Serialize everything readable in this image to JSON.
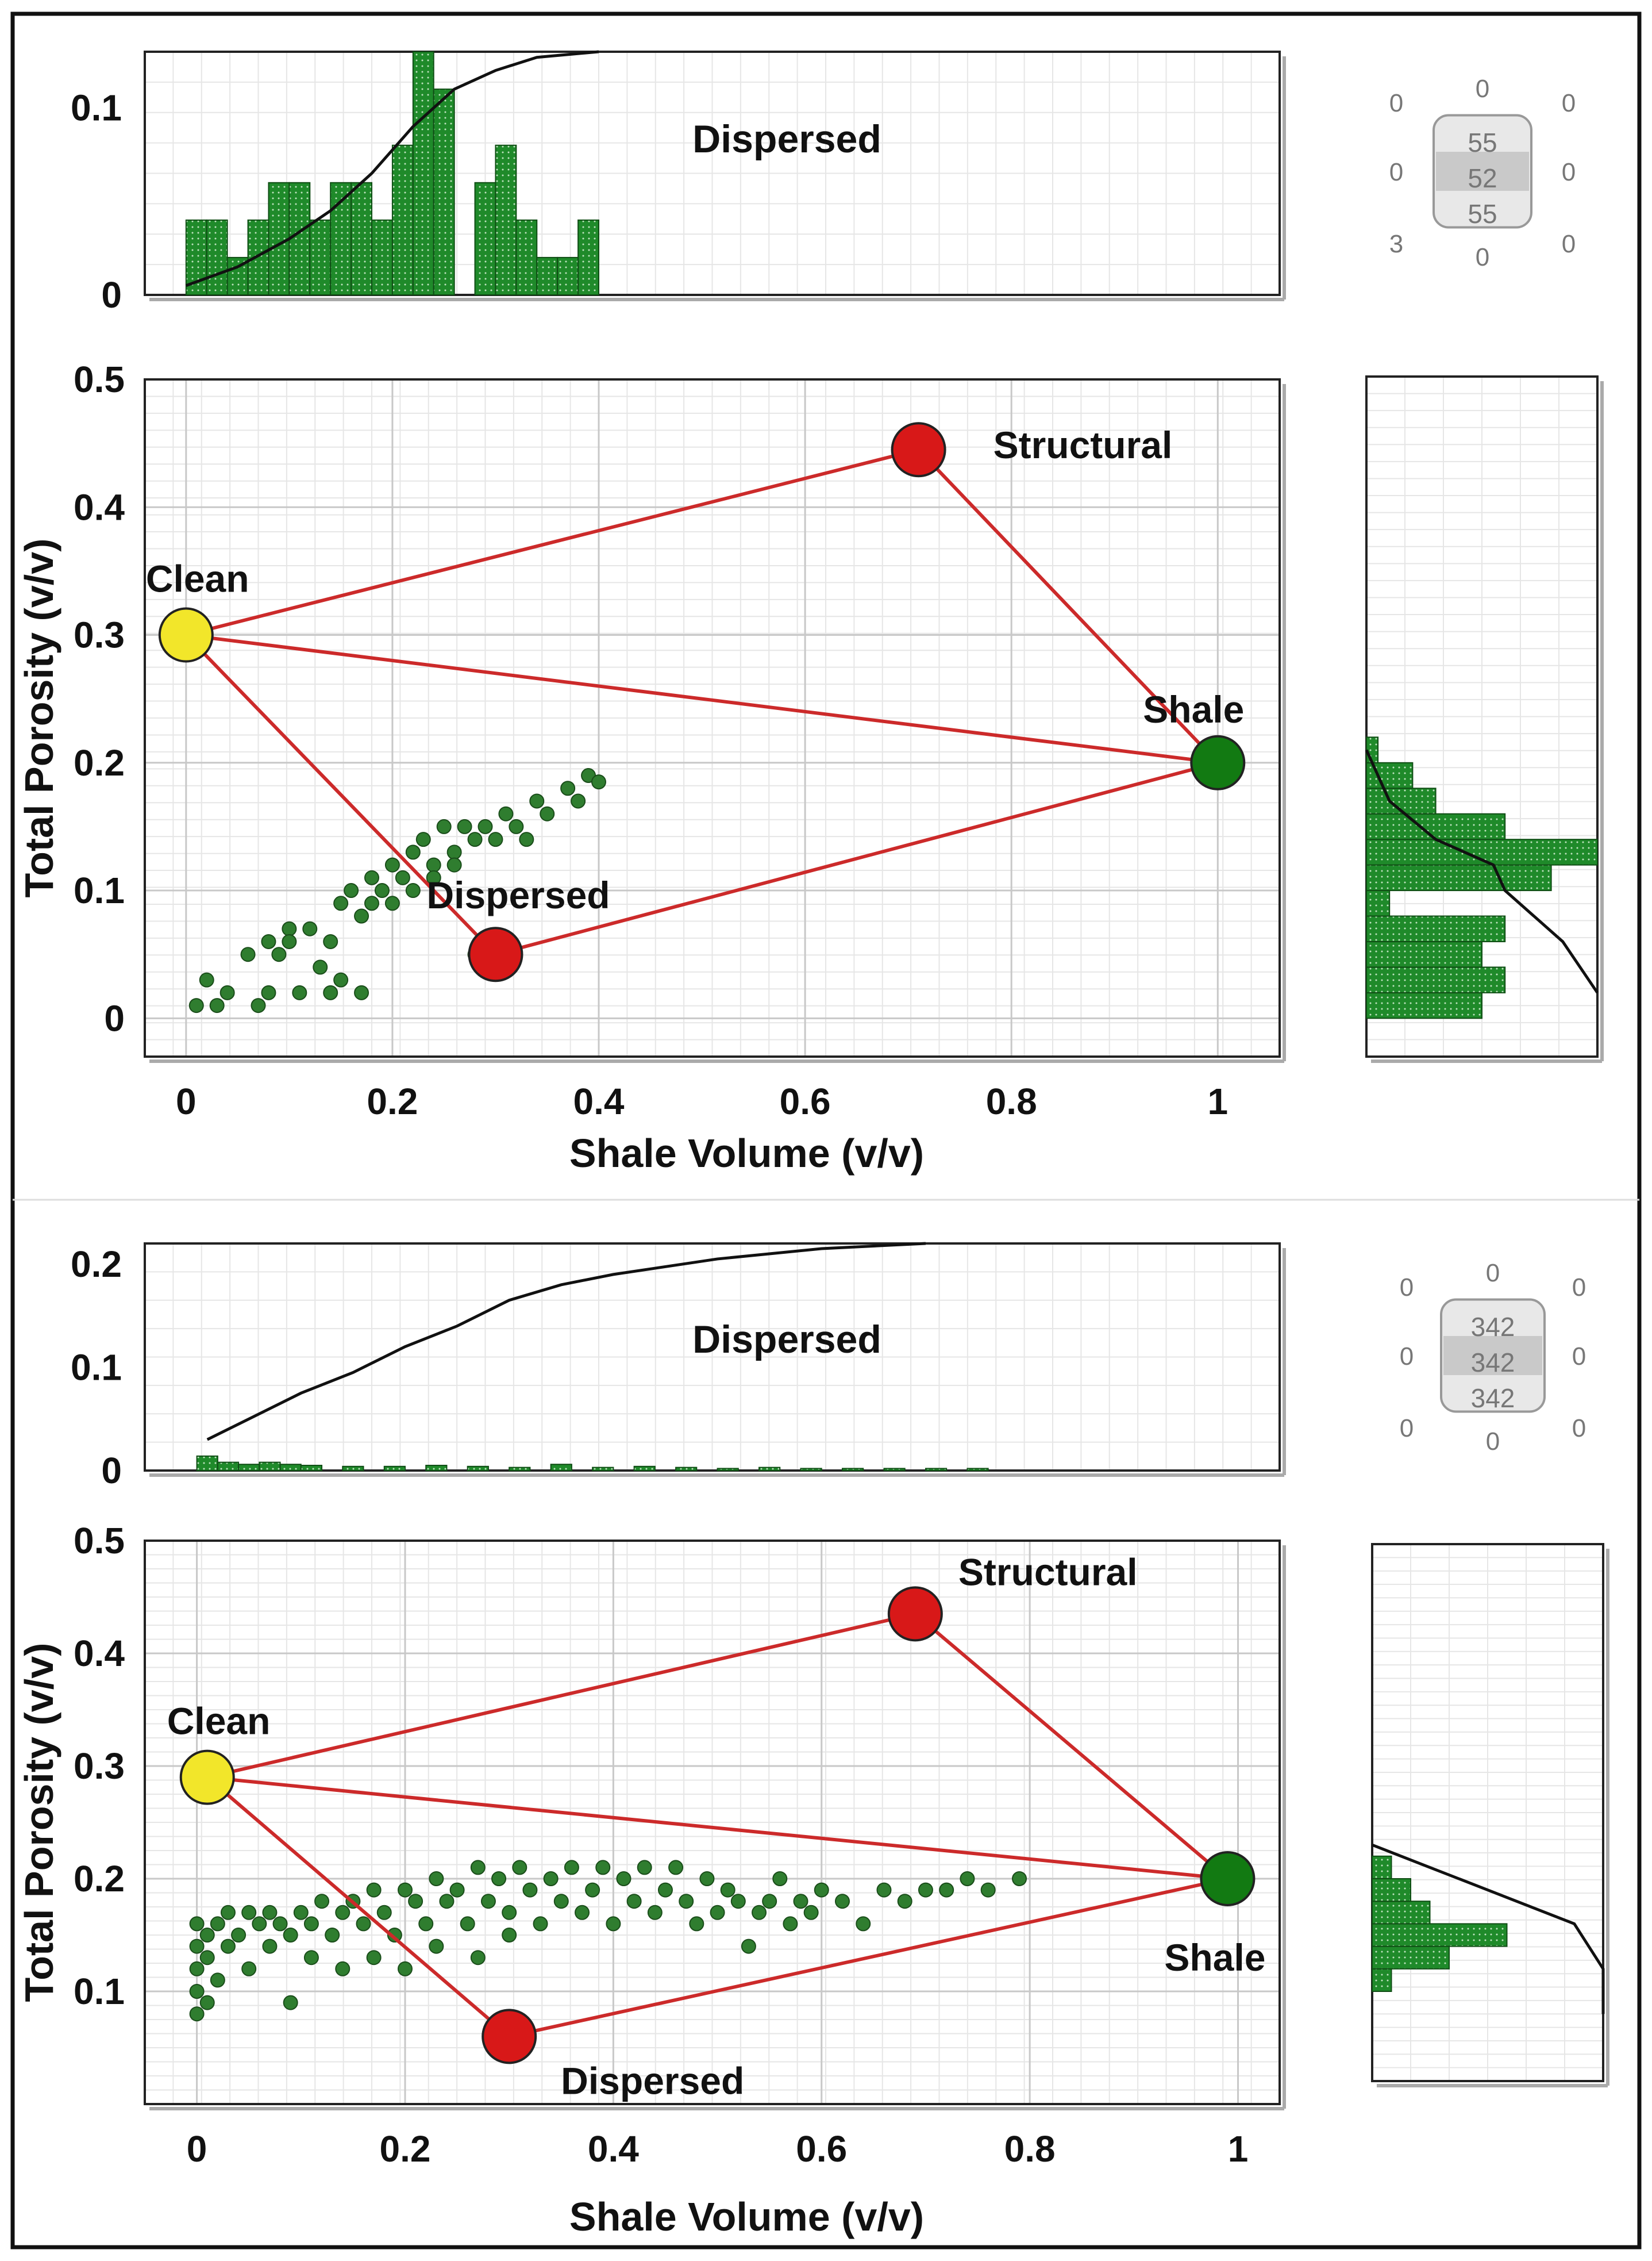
{
  "colors": {
    "frame": "#111111",
    "grid_major": "#c8c8c8",
    "grid_minor": "#e6e6e6",
    "bar_fill": "#1f8a2a",
    "bar_dots": "#bfe3bf",
    "point": "#2f7d2f",
    "triangle": "#cc2a2a",
    "clean": "#f2e62a",
    "dispersed": "#d81818",
    "structural": "#d81818",
    "shale": "#127a12",
    "cumulative": "#111111",
    "text": "#111111",
    "badge_text": "#777777"
  },
  "panels": [
    {
      "id": "top",
      "badge": {
        "title": "",
        "corner_values": [
          "0",
          "0",
          "0",
          "0",
          "0",
          "3",
          "0",
          "0"
        ],
        "center_values": [
          "55",
          "52",
          "55"
        ]
      },
      "chart_data": {
        "type": "scatter",
        "title": "",
        "xlabel": "Shale Volume (v/v)",
        "ylabel": "Total Porosity (v/v)",
        "xlim": [
          -0.04,
          1.06
        ],
        "ylim": [
          -0.03,
          0.5
        ],
        "x_ticks": [
          0,
          0.2,
          0.4,
          0.6,
          0.8,
          1
        ],
        "x_tick_labels": [
          "0",
          "0.2",
          "0.4",
          "0.6",
          "0.8",
          "1"
        ],
        "y_ticks": [
          0,
          0.1,
          0.2,
          0.3,
          0.4,
          0.5
        ],
        "y_tick_labels": [
          "0",
          "0.1",
          "0.2",
          "0.3",
          "0.4",
          "0.5"
        ],
        "endpoints": [
          {
            "name": "Clean",
            "label": "Clean",
            "x": 0.0,
            "y": 0.3
          },
          {
            "name": "Structural",
            "label": "Structural",
            "x": 0.71,
            "y": 0.445
          },
          {
            "name": "Shale",
            "label": "Shale",
            "x": 1.0,
            "y": 0.2
          },
          {
            "name": "Dispersed",
            "label": "Dispersed",
            "x": 0.3,
            "y": 0.05
          }
        ],
        "points": [
          [
            0.01,
            0.01
          ],
          [
            0.02,
            0.03
          ],
          [
            0.03,
            0.01
          ],
          [
            0.04,
            0.02
          ],
          [
            0.06,
            0.05
          ],
          [
            0.07,
            0.01
          ],
          [
            0.08,
            0.02
          ],
          [
            0.08,
            0.06
          ],
          [
            0.09,
            0.05
          ],
          [
            0.1,
            0.07
          ],
          [
            0.1,
            0.06
          ],
          [
            0.11,
            0.02
          ],
          [
            0.12,
            0.07
          ],
          [
            0.13,
            0.04
          ],
          [
            0.14,
            0.06
          ],
          [
            0.14,
            0.02
          ],
          [
            0.15,
            0.03
          ],
          [
            0.15,
            0.09
          ],
          [
            0.16,
            0.1
          ],
          [
            0.17,
            0.08
          ],
          [
            0.17,
            0.02
          ],
          [
            0.18,
            0.09
          ],
          [
            0.18,
            0.11
          ],
          [
            0.19,
            0.1
          ],
          [
            0.2,
            0.12
          ],
          [
            0.2,
            0.09
          ],
          [
            0.21,
            0.11
          ],
          [
            0.22,
            0.13
          ],
          [
            0.22,
            0.1
          ],
          [
            0.23,
            0.14
          ],
          [
            0.24,
            0.12
          ],
          [
            0.24,
            0.11
          ],
          [
            0.25,
            0.15
          ],
          [
            0.26,
            0.13
          ],
          [
            0.26,
            0.12
          ],
          [
            0.27,
            0.15
          ],
          [
            0.28,
            0.05
          ],
          [
            0.28,
            0.14
          ],
          [
            0.29,
            0.15
          ],
          [
            0.3,
            0.14
          ],
          [
            0.31,
            0.16
          ],
          [
            0.32,
            0.15
          ],
          [
            0.33,
            0.14
          ],
          [
            0.34,
            0.17
          ],
          [
            0.35,
            0.16
          ],
          [
            0.37,
            0.18
          ],
          [
            0.38,
            0.17
          ],
          [
            0.39,
            0.19
          ],
          [
            0.4,
            0.185
          ]
        ],
        "top_histogram": {
          "label": "Dispersed",
          "y_ticks": [
            0,
            0.1
          ],
          "y_tick_labels": [
            "0",
            "0.1"
          ],
          "ylim": [
            0,
            0.13
          ],
          "bins_x": [
            0.0,
            0.02,
            0.04,
            0.06,
            0.08,
            0.1,
            0.12,
            0.14,
            0.16,
            0.18,
            0.2,
            0.22,
            0.24,
            0.26,
            0.28,
            0.3,
            0.32,
            0.34,
            0.36,
            0.38
          ],
          "bin_width": 0.02,
          "values": [
            0.04,
            0.04,
            0.02,
            0.04,
            0.06,
            0.06,
            0.04,
            0.06,
            0.06,
            0.04,
            0.08,
            0.13,
            0.11,
            0.0,
            0.06,
            0.08,
            0.04,
            0.02,
            0.02,
            0.04
          ],
          "cumulative": [
            [
              0.0,
              0.005
            ],
            [
              0.05,
              0.015
            ],
            [
              0.1,
              0.03
            ],
            [
              0.14,
              0.045
            ],
            [
              0.18,
              0.065
            ],
            [
              0.22,
              0.09
            ],
            [
              0.26,
              0.11
            ],
            [
              0.3,
              0.12
            ],
            [
              0.34,
              0.127
            ],
            [
              0.4,
              0.13
            ]
          ]
        },
        "right_histogram": {
          "bins_y": [
            0.0,
            0.02,
            0.04,
            0.06,
            0.08,
            0.1,
            0.12,
            0.14,
            0.16,
            0.18,
            0.2
          ],
          "bin_height": 0.02,
          "values": [
            5,
            6,
            5,
            6,
            1,
            8,
            10,
            6,
            3,
            2,
            0.5
          ],
          "xmax": 10,
          "cumulative": [
            [
              0.21,
              0
            ],
            [
              0.17,
              1
            ],
            [
              0.14,
              3
            ],
            [
              0.12,
              5.5
            ],
            [
              0.1,
              6
            ],
            [
              0.06,
              8.5
            ],
            [
              0.02,
              10
            ]
          ]
        }
      }
    },
    {
      "id": "bottom",
      "badge": {
        "title": "",
        "corner_values": [
          "0",
          "0",
          "0",
          "0",
          "0",
          "0",
          "0",
          "0"
        ],
        "center_values": [
          "342",
          "342",
          "342"
        ]
      },
      "chart_data": {
        "type": "scatter",
        "title": "",
        "xlabel": "Shale Volume (v/v)",
        "ylabel": "Total Porosity (v/v)",
        "xlim": [
          -0.05,
          1.04
        ],
        "ylim": [
          0.0,
          0.5
        ],
        "x_ticks": [
          0,
          0.2,
          0.4,
          0.6,
          0.8,
          1
        ],
        "x_tick_labels": [
          "0",
          "0.2",
          "0.4",
          "0.6",
          "0.8",
          "1"
        ],
        "y_ticks": [
          0.1,
          0.2,
          0.3,
          0.4,
          0.5
        ],
        "y_tick_labels": [
          "0.1",
          "0.2",
          "0.3",
          "0.4",
          "0.5"
        ],
        "endpoints": [
          {
            "name": "Clean",
            "label": "Clean",
            "x": 0.01,
            "y": 0.29
          },
          {
            "name": "Structural",
            "label": "Structural",
            "x": 0.69,
            "y": 0.435
          },
          {
            "name": "Shale",
            "label": "Shale",
            "x": 0.99,
            "y": 0.2
          },
          {
            "name": "Dispersed",
            "label": "Dispersed",
            "x": 0.3,
            "y": 0.06
          }
        ],
        "points": [
          [
            0.0,
            0.08
          ],
          [
            0.0,
            0.1
          ],
          [
            0.0,
            0.12
          ],
          [
            0.0,
            0.14
          ],
          [
            0.0,
            0.16
          ],
          [
            0.01,
            0.09
          ],
          [
            0.01,
            0.13
          ],
          [
            0.01,
            0.15
          ],
          [
            0.02,
            0.11
          ],
          [
            0.02,
            0.16
          ],
          [
            0.03,
            0.14
          ],
          [
            0.03,
            0.17
          ],
          [
            0.04,
            0.15
          ],
          [
            0.05,
            0.12
          ],
          [
            0.05,
            0.17
          ],
          [
            0.06,
            0.16
          ],
          [
            0.07,
            0.14
          ],
          [
            0.07,
            0.17
          ],
          [
            0.08,
            0.16
          ],
          [
            0.09,
            0.09
          ],
          [
            0.09,
            0.15
          ],
          [
            0.1,
            0.17
          ],
          [
            0.11,
            0.13
          ],
          [
            0.11,
            0.16
          ],
          [
            0.12,
            0.18
          ],
          [
            0.13,
            0.15
          ],
          [
            0.14,
            0.12
          ],
          [
            0.14,
            0.17
          ],
          [
            0.15,
            0.18
          ],
          [
            0.16,
            0.16
          ],
          [
            0.17,
            0.19
          ],
          [
            0.17,
            0.13
          ],
          [
            0.18,
            0.17
          ],
          [
            0.19,
            0.15
          ],
          [
            0.2,
            0.19
          ],
          [
            0.2,
            0.12
          ],
          [
            0.21,
            0.18
          ],
          [
            0.22,
            0.16
          ],
          [
            0.23,
            0.2
          ],
          [
            0.23,
            0.14
          ],
          [
            0.24,
            0.18
          ],
          [
            0.25,
            0.19
          ],
          [
            0.26,
            0.16
          ],
          [
            0.27,
            0.21
          ],
          [
            0.27,
            0.13
          ],
          [
            0.28,
            0.18
          ],
          [
            0.29,
            0.2
          ],
          [
            0.3,
            0.17
          ],
          [
            0.3,
            0.15
          ],
          [
            0.31,
            0.21
          ],
          [
            0.32,
            0.19
          ],
          [
            0.33,
            0.16
          ],
          [
            0.34,
            0.2
          ],
          [
            0.35,
            0.18
          ],
          [
            0.36,
            0.21
          ],
          [
            0.37,
            0.17
          ],
          [
            0.38,
            0.19
          ],
          [
            0.39,
            0.21
          ],
          [
            0.4,
            0.16
          ],
          [
            0.41,
            0.2
          ],
          [
            0.42,
            0.18
          ],
          [
            0.43,
            0.21
          ],
          [
            0.44,
            0.17
          ],
          [
            0.45,
            0.19
          ],
          [
            0.46,
            0.21
          ],
          [
            0.47,
            0.18
          ],
          [
            0.48,
            0.16
          ],
          [
            0.49,
            0.2
          ],
          [
            0.5,
            0.17
          ],
          [
            0.51,
            0.19
          ],
          [
            0.52,
            0.18
          ],
          [
            0.53,
            0.14
          ],
          [
            0.54,
            0.17
          ],
          [
            0.55,
            0.18
          ],
          [
            0.56,
            0.2
          ],
          [
            0.57,
            0.16
          ],
          [
            0.58,
            0.18
          ],
          [
            0.59,
            0.17
          ],
          [
            0.6,
            0.19
          ],
          [
            0.62,
            0.18
          ],
          [
            0.64,
            0.16
          ],
          [
            0.66,
            0.19
          ],
          [
            0.68,
            0.18
          ],
          [
            0.7,
            0.19
          ],
          [
            0.72,
            0.19
          ],
          [
            0.74,
            0.2
          ],
          [
            0.76,
            0.19
          ],
          [
            0.79,
            0.2
          ]
        ],
        "top_histogram": {
          "label": "Dispersed",
          "y_ticks": [
            0,
            0.1,
            0.2
          ],
          "y_tick_labels": [
            "0",
            "0.1",
            "0.2"
          ],
          "ylim": [
            0,
            0.22
          ],
          "bins_x": [
            0.0,
            0.02,
            0.04,
            0.06,
            0.08,
            0.1,
            0.14,
            0.18,
            0.22,
            0.26,
            0.3,
            0.34,
            0.38,
            0.42,
            0.46,
            0.5,
            0.54,
            0.58,
            0.62,
            0.66,
            0.7,
            0.74
          ],
          "bin_width": 0.02,
          "values": [
            0.014,
            0.008,
            0.006,
            0.008,
            0.006,
            0.005,
            0.004,
            0.004,
            0.005,
            0.004,
            0.003,
            0.006,
            0.003,
            0.004,
            0.003,
            0.002,
            0.003,
            0.002,
            0.002,
            0.002,
            0.002,
            0.002
          ],
          "cumulative": [
            [
              0.01,
              0.03
            ],
            [
              0.05,
              0.05
            ],
            [
              0.1,
              0.075
            ],
            [
              0.15,
              0.095
            ],
            [
              0.2,
              0.12
            ],
            [
              0.25,
              0.14
            ],
            [
              0.3,
              0.165
            ],
            [
              0.35,
              0.18
            ],
            [
              0.4,
              0.19
            ],
            [
              0.5,
              0.205
            ],
            [
              0.6,
              0.215
            ],
            [
              0.7,
              0.22
            ]
          ]
        },
        "right_histogram": {
          "bins_y": [
            0.1,
            0.12,
            0.14,
            0.16,
            0.18,
            0.2
          ],
          "bin_height": 0.02,
          "values": [
            1,
            4,
            7,
            3,
            2,
            1
          ],
          "xmax": 12,
          "cumulative": [
            [
              0.23,
              0
            ],
            [
              0.21,
              3
            ],
            [
              0.19,
              6
            ],
            [
              0.16,
              10.5
            ],
            [
              0.12,
              12
            ],
            [
              0.08,
              12
            ]
          ]
        }
      }
    }
  ]
}
